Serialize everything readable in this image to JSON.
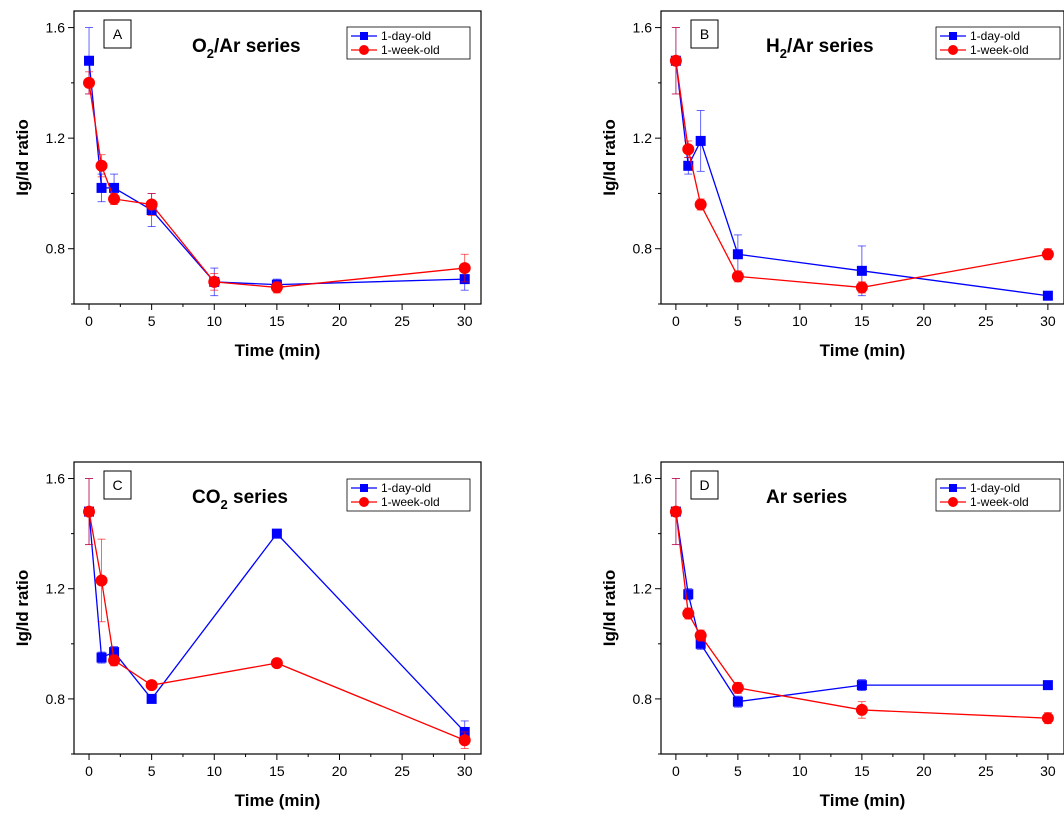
{
  "chart_data": [
    {
      "type": "line",
      "panel_letter": "A",
      "title": {
        "main": "O",
        "sub": "2",
        "rest": "/Ar series"
      },
      "xlabel": "Time (min)",
      "ylabel": "Ig/Id ratio",
      "xlim": [
        -1.2,
        31.3
      ],
      "ylim": [
        0.6,
        1.66
      ],
      "x_ticks": [
        0,
        5,
        10,
        15,
        20,
        25,
        30
      ],
      "y_ticks": [
        0.8,
        1.2,
        1.6
      ],
      "legend_position": "top-right",
      "series": [
        {
          "name": "1-day-old",
          "color": "#0000ff",
          "marker": "square",
          "x": [
            0,
            1,
            2,
            5,
            10,
            15,
            30
          ],
          "y": [
            1.48,
            1.02,
            1.02,
            0.94,
            0.68,
            0.67,
            0.69
          ],
          "err": [
            0.12,
            0.05,
            0.05,
            0.06,
            0.05,
            0.02,
            0.04
          ]
        },
        {
          "name": "1-week-old",
          "color": "#ff0000",
          "marker": "circle",
          "x": [
            0,
            1,
            2,
            5,
            10,
            15,
            30
          ],
          "y": [
            1.4,
            1.1,
            0.98,
            0.96,
            0.68,
            0.66,
            0.73
          ],
          "err": [
            0.04,
            0.04,
            0.02,
            0.04,
            0.03,
            0.02,
            0.05
          ]
        }
      ]
    },
    {
      "type": "line",
      "panel_letter": "B",
      "title": {
        "main": "H",
        "sub": "2",
        "rest": "/Ar series"
      },
      "xlabel": "Time (min)",
      "ylabel": "Ig/Id ratio",
      "xlim": [
        -1.2,
        31.3
      ],
      "ylim": [
        0.6,
        1.66
      ],
      "x_ticks": [
        0,
        5,
        10,
        15,
        20,
        25,
        30
      ],
      "y_ticks": [
        0.8,
        1.2,
        1.6
      ],
      "legend_position": "top-right",
      "series": [
        {
          "name": "1-day-old",
          "color": "#0000ff",
          "marker": "square",
          "x": [
            0,
            1,
            2,
            5,
            15,
            30
          ],
          "y": [
            1.48,
            1.1,
            1.19,
            0.78,
            0.72,
            0.63
          ],
          "err": [
            0.12,
            0.03,
            0.11,
            0.07,
            0.09,
            0.01
          ]
        },
        {
          "name": "1-week-old",
          "color": "#ff0000",
          "marker": "circle",
          "x": [
            0,
            1,
            2,
            5,
            15,
            30
          ],
          "y": [
            1.48,
            1.16,
            0.96,
            0.7,
            0.66,
            0.78
          ],
          "err": [
            0.12,
            0.03,
            0.02,
            0.02,
            0.02,
            0.02
          ]
        }
      ]
    },
    {
      "type": "line",
      "panel_letter": "C",
      "title": {
        "main": "CO",
        "sub": "2",
        "rest": " series"
      },
      "xlabel": "Time (min)",
      "ylabel": "Ig/Id ratio",
      "xlim": [
        -1.2,
        31.3
      ],
      "ylim": [
        0.6,
        1.66
      ],
      "x_ticks": [
        0,
        5,
        10,
        15,
        20,
        25,
        30
      ],
      "y_ticks": [
        0.8,
        1.2,
        1.6
      ],
      "legend_position": "top-right",
      "series": [
        {
          "name": "1-day-old",
          "color": "#0000ff",
          "marker": "square",
          "x": [
            0,
            1,
            2,
            5,
            15,
            30
          ],
          "y": [
            1.48,
            0.95,
            0.97,
            0.8,
            1.4,
            0.68
          ],
          "err": [
            0.12,
            0.02,
            0.02,
            0.01,
            0.01,
            0.04
          ]
        },
        {
          "name": "1-week-old",
          "color": "#ff0000",
          "marker": "circle",
          "x": [
            0,
            1,
            2,
            5,
            15,
            30
          ],
          "y": [
            1.48,
            1.23,
            0.94,
            0.85,
            0.93,
            0.65
          ],
          "err": [
            0.12,
            0.15,
            0.02,
            0.01,
            0.01,
            0.03
          ]
        }
      ]
    },
    {
      "type": "line",
      "panel_letter": "D",
      "title": {
        "main": "Ar series",
        "sub": "",
        "rest": ""
      },
      "xlabel": "Time (min)",
      "ylabel": "Ig/Id ratio",
      "xlim": [
        -1.2,
        31.3
      ],
      "ylim": [
        0.6,
        1.66
      ],
      "x_ticks": [
        0,
        5,
        10,
        15,
        20,
        25,
        30
      ],
      "y_ticks": [
        0.8,
        1.2,
        1.6
      ],
      "legend_position": "top-right",
      "series": [
        {
          "name": "1-day-old",
          "color": "#0000ff",
          "marker": "square",
          "x": [
            0,
            1,
            2,
            5,
            15,
            30
          ],
          "y": [
            1.48,
            1.18,
            1.0,
            0.79,
            0.85,
            0.85
          ],
          "err": [
            0.12,
            0.02,
            0.02,
            0.02,
            0.02,
            0.01
          ]
        },
        {
          "name": "1-week-old",
          "color": "#ff0000",
          "marker": "circle",
          "x": [
            0,
            1,
            2,
            5,
            15,
            30
          ],
          "y": [
            1.48,
            1.11,
            1.03,
            0.84,
            0.76,
            0.73
          ],
          "err": [
            0.12,
            0.02,
            0.02,
            0.02,
            0.03,
            0.02
          ]
        }
      ]
    }
  ]
}
